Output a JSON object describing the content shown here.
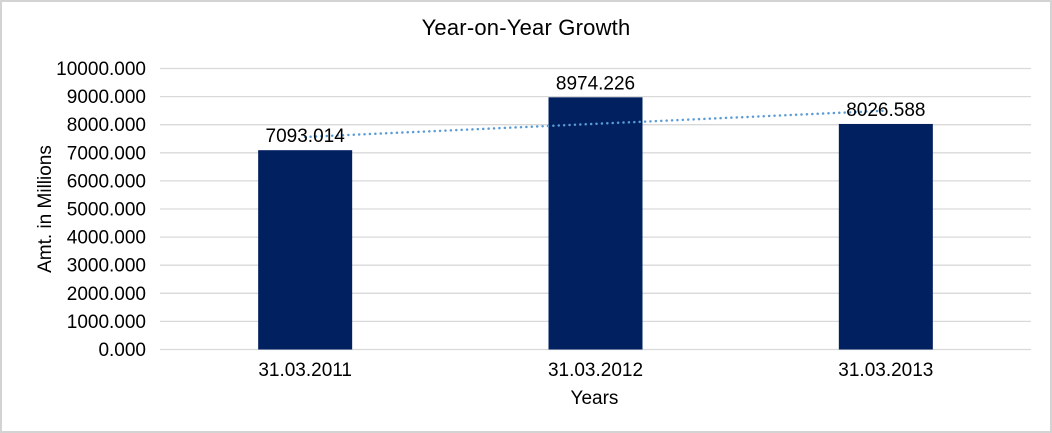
{
  "chart_data": {
    "type": "bar",
    "title": "Year-on-Year Growth",
    "xlabel": "Years",
    "ylabel": "Amt. in Millions",
    "categories": [
      "31.03.2011",
      "31.03.2012",
      "31.03.2013"
    ],
    "values": [
      7093.014,
      8974.226,
      8026.588
    ],
    "data_labels": [
      "7093.014",
      "8974.226",
      "8026.588"
    ],
    "yticks": [
      "10000.000",
      "9000.000",
      "8000.000",
      "7000.000",
      "6000.000",
      "5000.000",
      "4000.000",
      "3000.000",
      "2000.000",
      "1000.000",
      "0.000"
    ],
    "ylim": [
      0,
      10000
    ],
    "grid": true,
    "legend": "none",
    "trendline": {
      "type": "linear",
      "style": "dotted"
    },
    "colors": {
      "bar": "#002060",
      "trendline": "#5b9bd5",
      "gridline": "#d9d9d9",
      "axis_line": "#d9d9d9",
      "text": "#000000",
      "background": "#ffffff",
      "border": "#d3d3d3"
    }
  }
}
